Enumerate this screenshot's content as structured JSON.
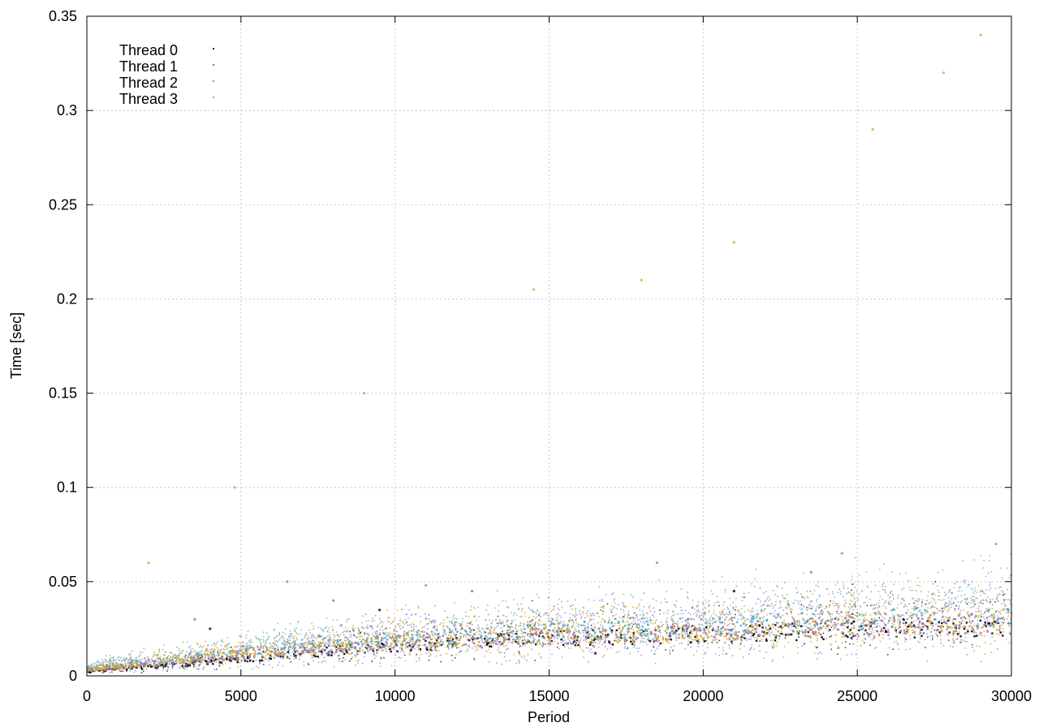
{
  "chart_data": {
    "type": "scatter",
    "title": "",
    "xlabel": "Period",
    "ylabel": "Time [sec]",
    "xlim": [
      0,
      30000
    ],
    "ylim": [
      0,
      0.35
    ],
    "xticks": [
      0,
      5000,
      10000,
      15000,
      20000,
      25000,
      30000
    ],
    "xtick_labels": [
      "0",
      "5000",
      "10000",
      "15000",
      "20000",
      "25000",
      "30000"
    ],
    "yticks": [
      0,
      0.05,
      0.1,
      0.15,
      0.2,
      0.25,
      0.3,
      0.35
    ],
    "ytick_labels": [
      "0",
      "0.05",
      "0.1",
      "0.15",
      "0.2",
      "0.25",
      "0.3",
      "0.35"
    ],
    "grid": true,
    "legend_position": "top-left",
    "series": [
      {
        "name": "Thread 0",
        "color": "#000000",
        "trend": [
          [
            0,
            0.003
          ],
          [
            5000,
            0.01
          ],
          [
            10000,
            0.018
          ],
          [
            15000,
            0.022
          ],
          [
            20000,
            0.024
          ],
          [
            25000,
            0.027
          ],
          [
            30000,
            0.028
          ]
        ],
        "points": [
          [
            4000,
            0.025
          ],
          [
            9500,
            0.035
          ],
          [
            16500,
            0.012
          ],
          [
            21000,
            0.045
          ],
          [
            26500,
            0.03
          ]
        ]
      },
      {
        "name": "Thread 1",
        "color": "#9467bd",
        "trend": [
          [
            0,
            0.004
          ],
          [
            5000,
            0.012
          ],
          [
            10000,
            0.02
          ],
          [
            15000,
            0.023
          ],
          [
            20000,
            0.026
          ],
          [
            25000,
            0.029
          ],
          [
            30000,
            0.031
          ]
        ],
        "points": [
          [
            3500,
            0.03
          ],
          [
            8000,
            0.04
          ],
          [
            12500,
            0.045
          ],
          [
            19500,
            0.03
          ],
          [
            23500,
            0.055
          ]
        ]
      },
      {
        "name": "Thread 2",
        "color": "#4ba9c8",
        "trend": [
          [
            0,
            0.005
          ],
          [
            5000,
            0.014
          ],
          [
            10000,
            0.022
          ],
          [
            15000,
            0.026
          ],
          [
            20000,
            0.029
          ],
          [
            25000,
            0.033
          ],
          [
            30000,
            0.036
          ]
        ],
        "points": [
          [
            6500,
            0.05
          ],
          [
            11000,
            0.048
          ],
          [
            18500,
            0.06
          ],
          [
            24500,
            0.065
          ],
          [
            29500,
            0.07
          ]
        ]
      },
      {
        "name": "Thread 3",
        "color": "#d9a62e",
        "trend": [
          [
            0,
            0.004
          ],
          [
            5000,
            0.013
          ],
          [
            10000,
            0.02
          ],
          [
            15000,
            0.024
          ],
          [
            20000,
            0.025
          ],
          [
            25000,
            0.03
          ],
          [
            30000,
            0.033
          ]
        ],
        "points": [
          [
            2000,
            0.06
          ],
          [
            4800,
            0.1
          ],
          [
            9000,
            0.15
          ],
          [
            14500,
            0.205
          ],
          [
            18000,
            0.21
          ],
          [
            21000,
            0.23
          ],
          [
            25500,
            0.29
          ],
          [
            27800,
            0.32
          ],
          [
            29000,
            0.34
          ]
        ]
      }
    ]
  }
}
